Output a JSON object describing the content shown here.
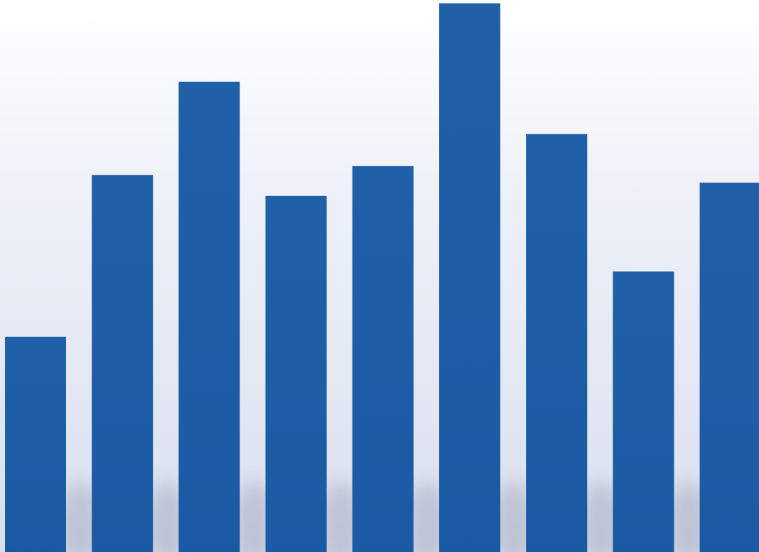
{
  "chart_data": {
    "type": "bar",
    "values": [
      39,
      68.3,
      85.2,
      64.5,
      69.9,
      99.4,
      75.7,
      50.8,
      66.9
    ],
    "color": "#1d5ca6",
    "ylim": [
      0,
      100
    ]
  }
}
